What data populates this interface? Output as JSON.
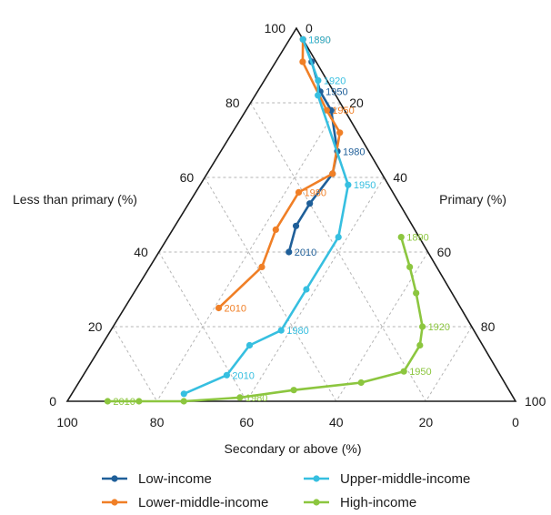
{
  "chart_data": {
    "type": "scatter",
    "subtype": "ternary",
    "title": "",
    "axes": {
      "left": {
        "label": "Less than primary (%)",
        "ticks": [
          "100",
          "80",
          "60",
          "40",
          "20",
          "0"
        ]
      },
      "right": {
        "label": "Primary (%)",
        "ticks": [
          "0",
          "20",
          "40",
          "60",
          "80",
          "100"
        ]
      },
      "bottom": {
        "label": "Secondary or above (%)",
        "ticks": [
          "100",
          "80",
          "60",
          "40",
          "20",
          "0"
        ]
      }
    },
    "grid": true,
    "legend_position": "bottom",
    "series": [
      {
        "name": "Low-income",
        "color": "#1f5f99",
        "points": [
          {
            "year": "1890",
            "less_than_primary": 97,
            "primary": 3,
            "secondary": 0,
            "label": true
          },
          {
            "year": "1920",
            "less_than_primary": 91,
            "primary": 8,
            "secondary": 1,
            "label": false
          },
          {
            "year": "1950",
            "less_than_primary": 83,
            "primary": 14,
            "secondary": 3,
            "label": true
          },
          {
            "year": "",
            "less_than_primary": 78,
            "primary": 19,
            "secondary": 3,
            "label": false
          },
          {
            "year": "1980",
            "less_than_primary": 67,
            "primary": 26,
            "secondary": 7,
            "label": true
          },
          {
            "year": "",
            "less_than_primary": 61,
            "primary": 28,
            "secondary": 11,
            "label": false
          },
          {
            "year": "",
            "less_than_primary": 53,
            "primary": 27,
            "secondary": 20,
            "label": false
          },
          {
            "year": "",
            "less_than_primary": 47,
            "primary": 27,
            "secondary": 26,
            "label": false
          },
          {
            "year": "2010",
            "less_than_primary": 40,
            "primary": 29,
            "secondary": 31,
            "label": true
          }
        ]
      },
      {
        "name": "Lower-middle-income",
        "color": "#f07f26",
        "points": [
          {
            "year": "1890",
            "less_than_primary": 97,
            "primary": 3,
            "secondary": 0,
            "label": true
          },
          {
            "year": "",
            "less_than_primary": 91,
            "primary": 6,
            "secondary": 3,
            "label": false
          },
          {
            "year": "1950",
            "less_than_primary": 78,
            "primary": 18,
            "secondary": 4,
            "label": true
          },
          {
            "year": "",
            "less_than_primary": 72,
            "primary": 24,
            "secondary": 4,
            "label": false
          },
          {
            "year": "",
            "less_than_primary": 61,
            "primary": 28,
            "secondary": 11,
            "label": false
          },
          {
            "year": "1980",
            "less_than_primary": 56,
            "primary": 23,
            "secondary": 21,
            "label": true
          },
          {
            "year": "",
            "less_than_primary": 46,
            "primary": 23,
            "secondary": 31,
            "label": false
          },
          {
            "year": "",
            "less_than_primary": 36,
            "primary": 25,
            "secondary": 39,
            "label": false
          },
          {
            "year": "2010",
            "less_than_primary": 25,
            "primary": 21,
            "secondary": 54,
            "label": true
          }
        ]
      },
      {
        "name": "Upper-middle-income",
        "color": "#36bfe0",
        "points": [
          {
            "year": "1890",
            "less_than_primary": 97,
            "primary": 3,
            "secondary": 0,
            "label": true
          },
          {
            "year": "1920",
            "less_than_primary": 86,
            "primary": 12,
            "secondary": 2,
            "label": true
          },
          {
            "year": "",
            "less_than_primary": 82,
            "primary": 14,
            "secondary": 4,
            "label": false
          },
          {
            "year": "1950",
            "less_than_primary": 58,
            "primary": 33,
            "secondary": 9,
            "label": true
          },
          {
            "year": "",
            "less_than_primary": 44,
            "primary": 38,
            "secondary": 18,
            "label": false
          },
          {
            "year": "",
            "less_than_primary": 30,
            "primary": 38,
            "secondary": 32,
            "label": false
          },
          {
            "year": "1980",
            "less_than_primary": 19,
            "primary": 38,
            "secondary": 43,
            "label": true
          },
          {
            "year": "",
            "less_than_primary": 15,
            "primary": 33,
            "secondary": 52,
            "label": false
          },
          {
            "year": "2010",
            "less_than_primary": 7,
            "primary": 32,
            "secondary": 61,
            "label": true
          },
          {
            "year": "",
            "less_than_primary": 2,
            "primary": 25,
            "secondary": 73,
            "label": false
          }
        ]
      },
      {
        "name": "High-income",
        "color": "#8cc63f",
        "points": [
          {
            "year": "1890",
            "less_than_primary": 44,
            "primary": 52,
            "secondary": 4,
            "label": true
          },
          {
            "year": "",
            "less_than_primary": 36,
            "primary": 58,
            "secondary": 6,
            "label": false
          },
          {
            "year": "",
            "less_than_primary": 29,
            "primary": 63,
            "secondary": 8,
            "label": false
          },
          {
            "year": "1920",
            "less_than_primary": 20,
            "primary": 69,
            "secondary": 11,
            "label": true
          },
          {
            "year": "",
            "less_than_primary": 15,
            "primary": 71,
            "secondary": 14,
            "label": false
          },
          {
            "year": "1950",
            "less_than_primary": 8,
            "primary": 71,
            "secondary": 21,
            "label": true
          },
          {
            "year": "",
            "less_than_primary": 5,
            "primary": 63,
            "secondary": 32,
            "label": false
          },
          {
            "year": "",
            "less_than_primary": 3,
            "primary": 49,
            "secondary": 48,
            "label": false
          },
          {
            "year": "1980",
            "less_than_primary": 1,
            "primary": 38,
            "secondary": 61,
            "label": true
          },
          {
            "year": "",
            "less_than_primary": 0,
            "primary": 26,
            "secondary": 74,
            "label": false
          },
          {
            "year": "",
            "less_than_primary": 0,
            "primary": 16,
            "secondary": 84,
            "label": false
          },
          {
            "year": "2010",
            "less_than_primary": 0,
            "primary": 9,
            "secondary": 91,
            "label": true
          }
        ]
      }
    ]
  }
}
